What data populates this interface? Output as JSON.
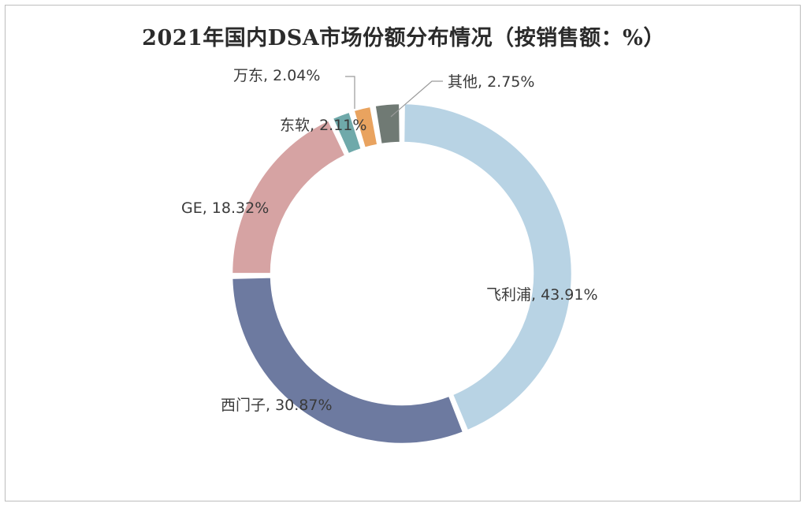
{
  "chart_data": {
    "type": "pie",
    "title": "2021年国内DSA市场份额分布情况（按销售额：%）",
    "segments": [
      {
        "name": "飞利浦",
        "value": 43.91,
        "label": "飞利浦, 43.91%",
        "color": "#b8d3e4"
      },
      {
        "name": "西门子",
        "value": 30.87,
        "label": "西门子, 30.87%",
        "color": "#6d7aa0"
      },
      {
        "name": "GE",
        "value": 18.32,
        "label": "GE, 18.32%",
        "color": "#d6a3a3"
      },
      {
        "name": "东软",
        "value": 2.11,
        "label": "东软, 2.11%",
        "color": "#6fa9aa"
      },
      {
        "name": "万东",
        "value": 2.04,
        "label": "万东, 2.04%",
        "color": "#e9a35f"
      },
      {
        "name": "其他",
        "value": 2.75,
        "label": "其他, 2.75%",
        "color": "#707a74"
      }
    ]
  }
}
